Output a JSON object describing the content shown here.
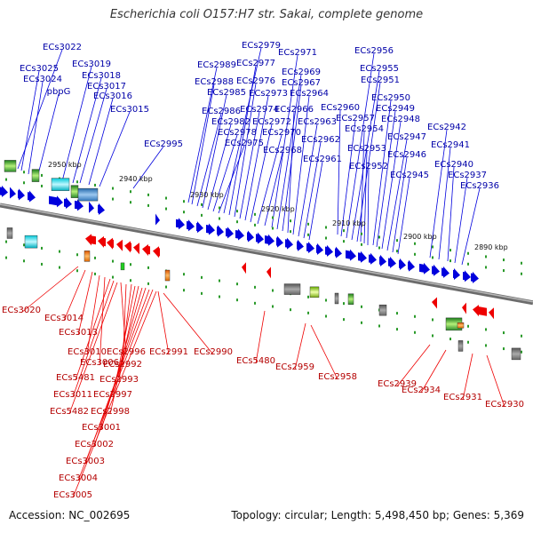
{
  "title": "Escherichia coli O157:H7 str. Sakai, complete genome",
  "accession": "Accession: NC_002695",
  "stats": "Topology: circular; Length: 5,498,450 bp; Genes: 5,369",
  "colors": {
    "forward": "#0000dd",
    "reverse": "#ee0000",
    "backbone": "#8a8a8a"
  },
  "ticks": [
    "2950 kbp",
    "2940 kbp",
    "2930 kbp",
    "2920 kbp",
    "2910 kbp",
    "2900 kbp",
    "2890 kbp"
  ],
  "forward_labels": [
    "ECs3022",
    "ECs3025",
    "ECs3024",
    "pbpG",
    "ECs3019",
    "ECs3018",
    "ECs3017",
    "ECs3016",
    "ECs3015",
    "ECs2995",
    "ECs2989",
    "ECs2988",
    "ECs2986",
    "ECs2985",
    "ECs2982",
    "ECs2978",
    "ECs2975",
    "ECs2979",
    "ECs2977",
    "ECs2976",
    "ECs2974",
    "ECs2973",
    "ECs2972",
    "ECs2970",
    "ECs2968",
    "ECs2971",
    "ECs2969",
    "ECs2967",
    "ECs2966",
    "ECs2964",
    "ECs2963",
    "ECs2962",
    "ECs2961",
    "ECs2960",
    "ECs2957",
    "ECs2956",
    "ECs2955",
    "ECs2951",
    "ECs2954",
    "ECs2953",
    "ECs2952",
    "ECs2950",
    "ECs2949",
    "ECs2948",
    "ECs2947",
    "ECs2946",
    "ECs2945",
    "ECs2942",
    "ECs2941",
    "ECs2940",
    "ECs2937",
    "ECs2936"
  ],
  "reverse_labels": [
    "ECs3020",
    "ECs3014",
    "ECs3013",
    "ECs3010",
    "ECs3006",
    "ECs5481",
    "ECs3011",
    "ECs5482",
    "ECs2996",
    "ECs2992",
    "ECs2993",
    "ECs2997",
    "ECs2998",
    "ECs3001",
    "ECs3002",
    "ECs3003",
    "ECs3004",
    "ECs3005",
    "ECs2991",
    "ECs2990",
    "ECs5480",
    "ECs2959",
    "ECs2958",
    "ECs2939",
    "ECs2934",
    "ECs2931",
    "ECs2930"
  ]
}
